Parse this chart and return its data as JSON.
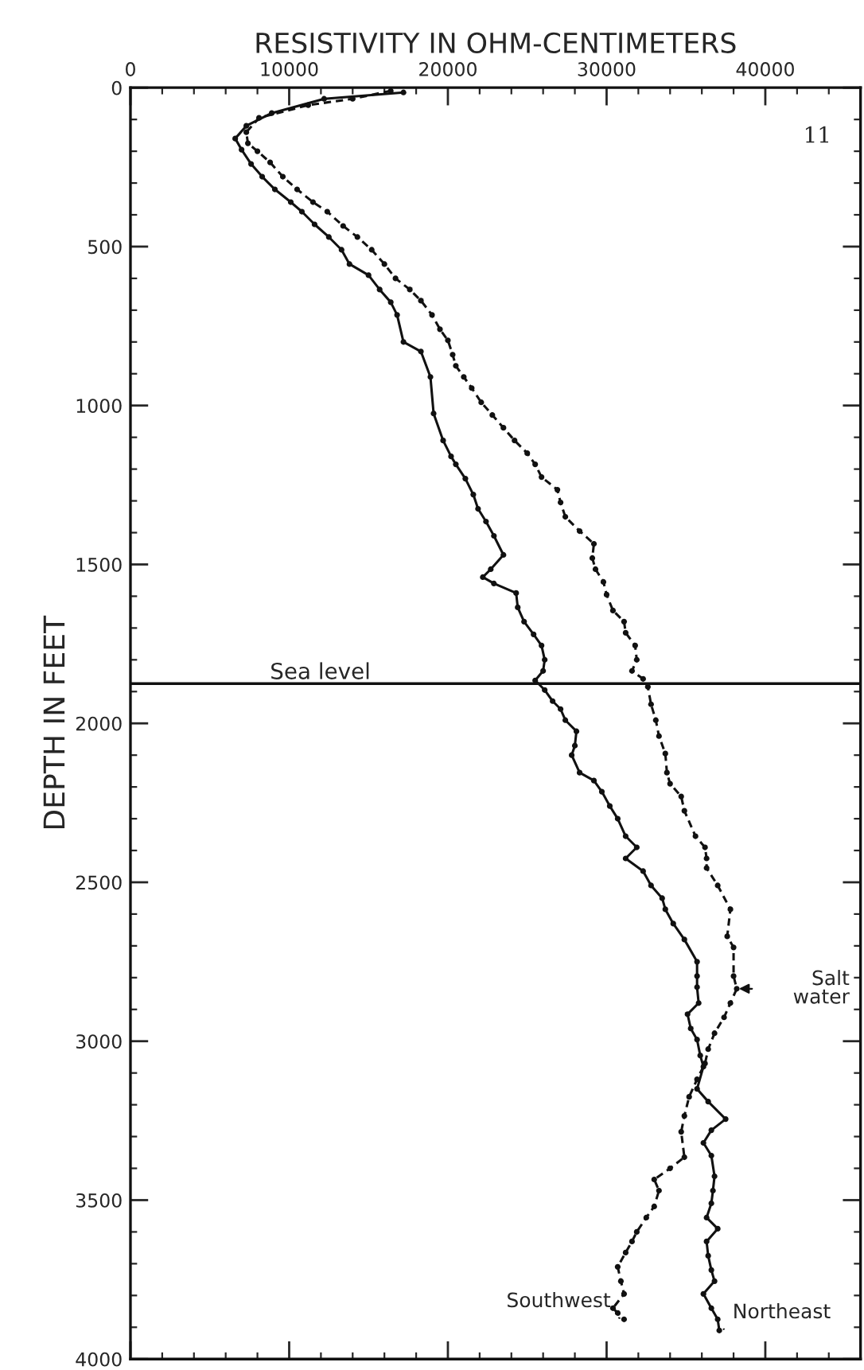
{
  "chart_data": {
    "type": "line",
    "xlabel": "RESISTIVITY IN OHM-CENTIMETERS",
    "ylabel": "DEPTH IN FEET",
    "xlim": [
      0,
      46000
    ],
    "xticks": [
      0,
      10000,
      20000,
      30000,
      40000
    ],
    "ylim": [
      4000,
      0
    ],
    "yticks": [
      0,
      500,
      1000,
      1500,
      2000,
      2500,
      3000,
      3500,
      4000
    ],
    "grid": false,
    "legend": false,
    "marker": "circle",
    "series": [
      {
        "name": "Northeast",
        "color": "#111111",
        "line_style": "solid",
        "x": [
          17200,
          12200,
          8900,
          7300,
          6600,
          7000,
          7600,
          8300,
          9100,
          10100,
          10800,
          11600,
          12500,
          13300,
          13800,
          15000,
          15700,
          16400,
          16800,
          17200,
          18300,
          18900,
          19100,
          19700,
          20200,
          20500,
          21100,
          21600,
          21900,
          22400,
          22900,
          23500,
          22700,
          22200,
          22900,
          24300,
          24400,
          24800,
          25400,
          25900,
          26100,
          26000,
          25500,
          26100,
          26600,
          27100,
          27400,
          28100,
          28000,
          27800,
          28300,
          29200,
          29700,
          30200,
          30700,
          31200,
          31900,
          31200,
          32300,
          32800,
          33500,
          33700,
          34200,
          34900,
          35700,
          35700,
          35700,
          35800,
          35100,
          35300,
          35700,
          35900,
          36100,
          35700,
          36400,
          37500,
          36600,
          36100,
          36600,
          36800,
          36700,
          36600,
          36300,
          37000,
          36300,
          36400,
          36600,
          36800,
          36100,
          36600,
          37000,
          37100
        ],
        "values": [
          15,
          35,
          80,
          120,
          160,
          195,
          240,
          280,
          320,
          360,
          390,
          430,
          470,
          510,
          555,
          590,
          635,
          675,
          715,
          800,
          830,
          910,
          1025,
          1110,
          1160,
          1185,
          1230,
          1280,
          1325,
          1365,
          1410,
          1470,
          1515,
          1540,
          1560,
          1590,
          1635,
          1680,
          1720,
          1755,
          1800,
          1835,
          1865,
          1895,
          1930,
          1955,
          1990,
          2025,
          2070,
          2100,
          2155,
          2180,
          2215,
          2260,
          2300,
          2355,
          2390,
          2425,
          2465,
          2510,
          2550,
          2585,
          2630,
          2680,
          2750,
          2795,
          2830,
          2880,
          2915,
          2960,
          2995,
          3045,
          3080,
          3150,
          3190,
          3245,
          3280,
          3320,
          3360,
          3425,
          3470,
          3510,
          3555,
          3590,
          3630,
          3675,
          3720,
          3755,
          3795,
          3840,
          3875,
          3910
        ]
      },
      {
        "name": "Southwest",
        "color": "#111111",
        "line_style": "dashed",
        "x": [
          16400,
          14000,
          11200,
          8100,
          7300,
          7400,
          8000,
          8800,
          9600,
          10500,
          11500,
          12400,
          13400,
          14300,
          15200,
          16000,
          16700,
          17600,
          18300,
          19000,
          19500,
          20000,
          20300,
          20500,
          21000,
          21500,
          22100,
          22800,
          23500,
          24200,
          25000,
          25500,
          25900,
          26900,
          27100,
          27400,
          28300,
          29200,
          29100,
          29300,
          29800,
          30000,
          30400,
          31100,
          31200,
          31800,
          31900,
          31600,
          32300,
          32600,
          32800,
          33100,
          33300,
          33700,
          33800,
          34000,
          34700,
          34900,
          35600,
          36200,
          36300,
          36300,
          37000,
          37800,
          37600,
          38000,
          38000,
          38200,
          37800,
          37400,
          36800,
          36400,
          36200,
          35700,
          35200,
          34900,
          34700,
          34900,
          34000,
          33000,
          33300,
          33000,
          32500,
          31900,
          31600,
          31200,
          30700,
          30900,
          31100,
          30400,
          30700,
          31100
        ],
        "values": [
          10,
          35,
          55,
          95,
          140,
          175,
          200,
          235,
          280,
          320,
          360,
          390,
          435,
          470,
          510,
          555,
          600,
          635,
          670,
          715,
          760,
          795,
          840,
          875,
          910,
          945,
          990,
          1030,
          1070,
          1110,
          1150,
          1185,
          1225,
          1265,
          1305,
          1350,
          1395,
          1435,
          1480,
          1515,
          1555,
          1595,
          1645,
          1680,
          1715,
          1755,
          1800,
          1835,
          1860,
          1885,
          1940,
          1990,
          2040,
          2095,
          2155,
          2190,
          2230,
          2275,
          2355,
          2390,
          2425,
          2455,
          2510,
          2585,
          2670,
          2705,
          2795,
          2835,
          2880,
          2925,
          2975,
          3025,
          3070,
          3120,
          3175,
          3235,
          3285,
          3365,
          3400,
          3435,
          3470,
          3520,
          3555,
          3600,
          3630,
          3665,
          3710,
          3755,
          3795,
          3840,
          3855,
          3875
        ]
      }
    ],
    "ref_lines": [
      {
        "axis": "y",
        "value": 1875,
        "label": "Sea level",
        "color": "#111111",
        "line_style": "solid"
      }
    ],
    "annotations": [
      "11",
      {
        "text": "Salt\nwater",
        "x": 38200,
        "y": 2835
      }
    ]
  }
}
